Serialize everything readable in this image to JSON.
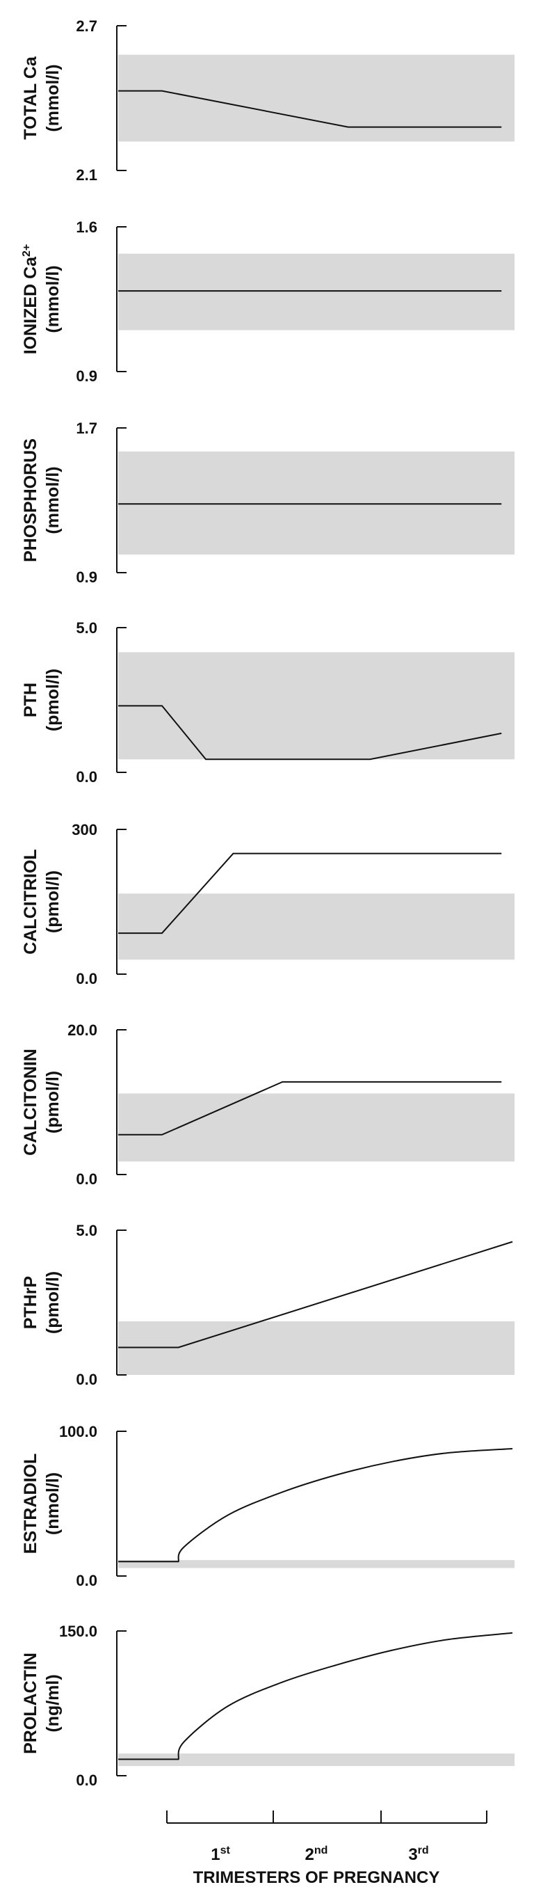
{
  "chart_data": [
    {
      "type": "line",
      "label_line1": "TOTAL Ca",
      "label_line2": "(mmol/l)",
      "ymax_label": "2.7",
      "ymin_label": "2.1",
      "ylim": [
        2.1,
        2.7
      ],
      "normal_range": [
        2.22,
        2.58
      ],
      "x": [
        0,
        0.4,
        2.1,
        3.5
      ],
      "y": [
        2.43,
        2.43,
        2.28,
        2.28
      ]
    },
    {
      "type": "line",
      "label_line1": "IONIZED Ca",
      "label_sup": "2+",
      "label_line2": "(mmol/l)",
      "ymax_label": "1.6",
      "ymin_label": "0.9",
      "ylim": [
        0.9,
        1.6
      ],
      "normal_range": [
        1.1,
        1.47
      ],
      "x": [
        0,
        3.5
      ],
      "y": [
        1.29,
        1.29
      ]
    },
    {
      "type": "line",
      "label_line1": "PHOSPHORUS",
      "label_line2": "(mmol/l)",
      "ymax_label": "1.7",
      "ymin_label": "0.9",
      "ylim": [
        0.9,
        1.7
      ],
      "normal_range": [
        1.0,
        1.57
      ],
      "x": [
        0,
        3.5
      ],
      "y": [
        1.28,
        1.28
      ]
    },
    {
      "type": "line",
      "label_line1": "PTH",
      "label_line2": "(pmol/l)",
      "ymax_label": "5.0",
      "ymin_label": "0.0",
      "ylim": [
        0,
        5
      ],
      "normal_range": [
        0.45,
        4.15
      ],
      "x": [
        0,
        0.4,
        0.8,
        2.3,
        3.5
      ],
      "y": [
        2.3,
        2.3,
        0.45,
        0.45,
        1.35
      ]
    },
    {
      "type": "line",
      "label_line1": "CALCITRIOL",
      "label_line2": "(pmol/l)",
      "ymax_label": "300",
      "ymin_label": "0.0",
      "ylim": [
        0,
        300
      ],
      "normal_range": [
        30,
        167
      ],
      "x": [
        0,
        0.4,
        1.05,
        3.5
      ],
      "y": [
        85,
        85,
        250,
        250
      ]
    },
    {
      "type": "line",
      "label_line1": "CALCITONIN",
      "label_line2": "(pmol/l)",
      "ymax_label": "20.0",
      "ymin_label": "0.0",
      "ylim": [
        0,
        20
      ],
      "normal_range": [
        1.8,
        11.2
      ],
      "x": [
        0,
        0.4,
        1.5,
        3.5
      ],
      "y": [
        5.5,
        5.5,
        12.8,
        12.8
      ]
    },
    {
      "type": "line",
      "label_line1": "PTHrP",
      "label_line2": "(pmol/l)",
      "ymax_label": "5.0",
      "ymin_label": "0.0",
      "ylim": [
        0,
        5
      ],
      "normal_range": [
        0,
        1.85
      ],
      "x": [
        0,
        0.55,
        3.6
      ],
      "y": [
        0.95,
        0.95,
        4.6
      ],
      "curve": "linear"
    },
    {
      "type": "line",
      "label_line1": "ESTRADIOL",
      "label_line2": "(nmol/l)",
      "ymax_label": "100.0",
      "ymin_label": "0.0",
      "ylim": [
        0,
        100
      ],
      "normal_range": [
        5.5,
        11
      ],
      "x": [
        0,
        0.55,
        0.6,
        1.0,
        1.5,
        2.0,
        2.5,
        3.0,
        3.6
      ],
      "y": [
        10,
        10,
        20,
        42,
        58,
        70,
        79,
        85,
        88
      ],
      "curve": "smooth"
    },
    {
      "type": "line",
      "label_line1": "PROLACTIN",
      "label_line2": "(ng/ml)",
      "ymax_label": "150.0",
      "ymin_label": "0.0",
      "ylim": [
        0,
        150
      ],
      "normal_range": [
        10,
        23
      ],
      "x": [
        0,
        0.55,
        0.6,
        1.0,
        1.5,
        2.0,
        2.5,
        3.0,
        3.6
      ],
      "y": [
        17,
        17,
        35,
        72,
        97,
        115,
        130,
        141,
        148
      ],
      "curve": "smooth"
    }
  ],
  "x_axis": {
    "ticks": [
      "1",
      "2",
      "3"
    ],
    "ticks_sup": [
      "st",
      "nd",
      "rd"
    ],
    "xlabel": "TRIMESTERS OF PREGNANCY"
  }
}
